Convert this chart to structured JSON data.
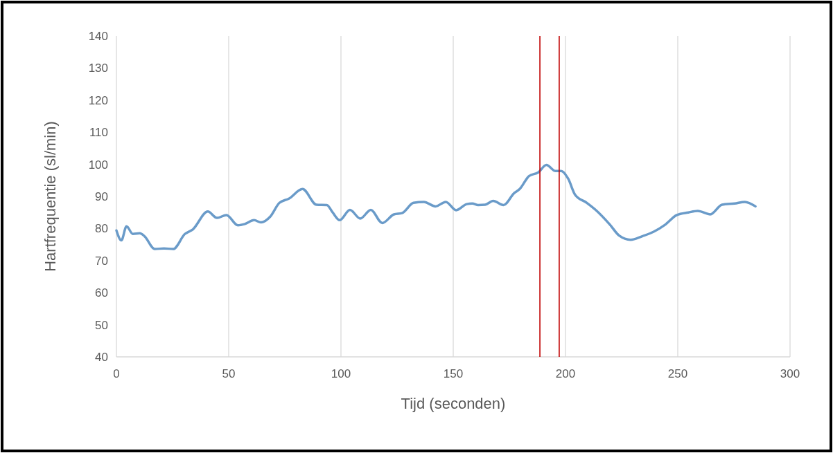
{
  "chart_data": {
    "type": "line",
    "xlabel": "Tijd (seconden)",
    "ylabel": "Hartfrequentie (sl/min)",
    "xlim": [
      0,
      300
    ],
    "xticks": [
      0,
      50,
      100,
      150,
      200,
      250,
      300
    ],
    "ylim": [
      40,
      140
    ],
    "yticks": [
      40,
      50,
      60,
      70,
      80,
      90,
      100,
      110,
      120,
      130,
      140
    ],
    "grid": "x",
    "marker": "none",
    "line_style": "solid",
    "series": [
      {
        "color": "#6a9bc9",
        "x": [
          0,
          2.2,
          4.5,
          7.3,
          10.4,
          12.5,
          17.1,
          21.2,
          25.3,
          30.5,
          34,
          40.7,
          44.8,
          49,
          54.1,
          57.2,
          61.3,
          64.4,
          68.5,
          72.6,
          76.8,
          82.9,
          89.1,
          93.7,
          96.3,
          99.4,
          104,
          108.6,
          113.3,
          118.4,
          123.6,
          127.2,
          132.3,
          136.9,
          142.1,
          146.7,
          151.3,
          156,
          158.5,
          161.1,
          164.2,
          167.8,
          172.4,
          177.1,
          179.6,
          183.7,
          187.9,
          191.5,
          195.6,
          198.1,
          201.2,
          204.3,
          209.5,
          213.6,
          219.8,
          223.9,
          229,
          234.2,
          239.3,
          244.4,
          249.6,
          254.7,
          258.9,
          264.5,
          269.7,
          275.3,
          279.9,
          284.6
        ],
        "values": [
          79.4,
          76.3,
          80.7,
          78.3,
          78.5,
          77.6,
          73.6,
          73.8,
          73.6,
          78.3,
          79.7,
          85.3,
          83.3,
          84.2,
          81,
          81.4,
          82.6,
          81.9,
          83.7,
          88,
          89.3,
          92.3,
          87.4,
          87.3,
          85,
          82.6,
          85.8,
          83.1,
          85.8,
          81.7,
          84.4,
          84.8,
          88,
          88.3,
          86.9,
          88.3,
          85.7,
          87.6,
          87.8,
          87.3,
          87.4,
          88.6,
          87.3,
          91,
          92.3,
          96.3,
          97.5,
          99.8,
          97.9,
          97.9,
          95.5,
          90.5,
          88,
          85.7,
          81.2,
          77.8,
          76.5,
          77.6,
          79,
          81.2,
          84.2,
          85,
          85.5,
          84.4,
          87.4,
          87.8,
          88.3,
          86.9
        ]
      }
    ],
    "ref_lines": [
      {
        "axis": "x",
        "value": 188.6,
        "color": "#c00000"
      },
      {
        "axis": "x",
        "value": 197.2,
        "color": "#c00000"
      }
    ]
  }
}
